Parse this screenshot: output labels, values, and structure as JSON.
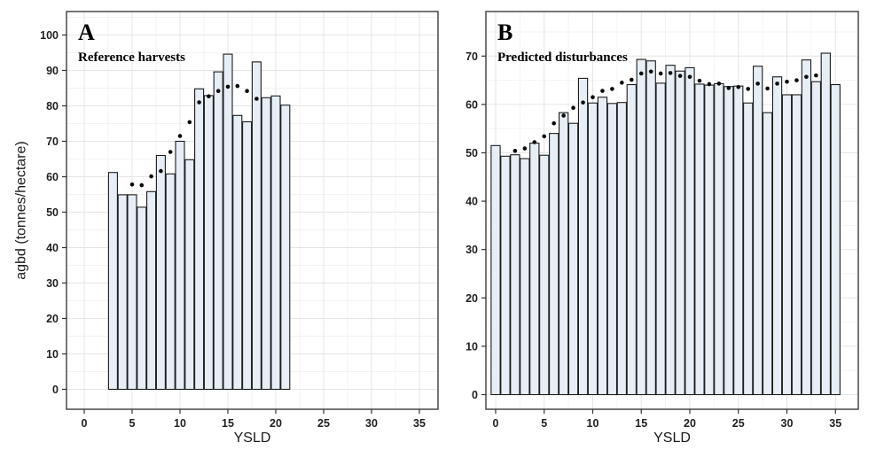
{
  "figure": {
    "ylabel": "agbd (tonnes/hectare)",
    "xlabel": "YSLD",
    "colors": {
      "background": "#ffffff",
      "bar_fill": "#e7eef5",
      "bar_stroke": "#1c1c1c",
      "dot": "#0a0a0a",
      "grid_major": "#e4e4e4",
      "grid_minor": "#f2f2f2",
      "panel_border": "#3c3c3c",
      "tick": "#333333",
      "text": "#1f1f1f"
    }
  },
  "chart_data": [
    {
      "type": "bar",
      "panel_label": "A",
      "title": "Reference harvests",
      "xlabel": "YSLD",
      "ylabel": "agbd (tonnes/hectare)",
      "xlim": [
        -1.9,
        36.9
      ],
      "ylim": [
        0,
        100
      ],
      "grid": "major+minor",
      "legend": "none",
      "x_ticks": [
        0,
        5,
        10,
        15,
        20,
        25,
        30,
        35
      ],
      "y_ticks": [
        0,
        10,
        20,
        30,
        40,
        50,
        60,
        70,
        80,
        90,
        100
      ],
      "bars": {
        "x": [
          3,
          4,
          5,
          6,
          7,
          8,
          9,
          10,
          11,
          12,
          13,
          14,
          15,
          16,
          17,
          18,
          19,
          20,
          21
        ],
        "values": [
          61.2,
          54.9,
          54.9,
          51.4,
          55.8,
          66.0,
          60.8,
          70.0,
          64.8,
          84.8,
          82.9,
          89.6,
          94.6,
          77.3,
          75.5,
          92.4,
          82.3,
          82.8,
          80.2
        ]
      },
      "trend_dots": {
        "x": [
          5,
          6,
          7,
          8,
          9,
          10,
          11,
          12,
          13,
          14,
          15,
          16,
          17,
          18
        ],
        "values": [
          57.8,
          57.6,
          60.1,
          61.6,
          67.0,
          71.5,
          75.4,
          81.0,
          82.7,
          84.2,
          85.4,
          85.6,
          84.2,
          82.0
        ]
      }
    },
    {
      "type": "bar",
      "panel_label": "B",
      "title": "Predicted disturbances",
      "xlabel": "YSLD",
      "ylabel": "agbd (tonnes/hectare)",
      "xlim": [
        -1.0,
        37.3
      ],
      "ylim": [
        0,
        70
      ],
      "grid": "major+minor",
      "legend": "none",
      "x_ticks": [
        0,
        5,
        10,
        15,
        20,
        25,
        30,
        35
      ],
      "y_ticks": [
        0,
        10,
        20,
        30,
        40,
        50,
        60,
        70
      ],
      "bars": {
        "x": [
          0,
          1,
          2,
          3,
          4,
          5,
          6,
          7,
          8,
          9,
          10,
          11,
          12,
          13,
          14,
          15,
          16,
          17,
          18,
          19,
          20,
          21,
          22,
          23,
          24,
          25,
          26,
          27,
          28,
          29,
          30,
          31,
          32,
          33,
          34,
          35
        ],
        "values": [
          51.5,
          49.3,
          49.6,
          48.8,
          52.0,
          49.5,
          54.0,
          58.3,
          56.1,
          65.4,
          60.3,
          61.5,
          60.2,
          60.4,
          64.1,
          69.3,
          69.0,
          64.4,
          68.1,
          66.9,
          67.6,
          64.2,
          64.0,
          64.3,
          63.7,
          63.8,
          60.3,
          67.9,
          58.3,
          65.7,
          62.0,
          62.0,
          69.2,
          64.7,
          70.6,
          64.1
        ]
      },
      "trend_dots": {
        "x": [
          2,
          3,
          4,
          5,
          6,
          7,
          8,
          9,
          10,
          11,
          12,
          13,
          14,
          15,
          16,
          17,
          18,
          19,
          20,
          21,
          22,
          23,
          24,
          25,
          26,
          27,
          28,
          29,
          30,
          31,
          32,
          33
        ],
        "values": [
          50.4,
          50.9,
          52.2,
          53.4,
          56.1,
          57.7,
          59.3,
          60.4,
          61.5,
          62.8,
          63.2,
          64.5,
          65.1,
          66.4,
          66.8,
          66.4,
          66.5,
          65.9,
          65.7,
          64.9,
          64.2,
          64.3,
          63.4,
          63.6,
          63.2,
          64.3,
          63.3,
          64.3,
          64.7,
          65.0,
          65.7,
          66.0
        ]
      }
    }
  ]
}
